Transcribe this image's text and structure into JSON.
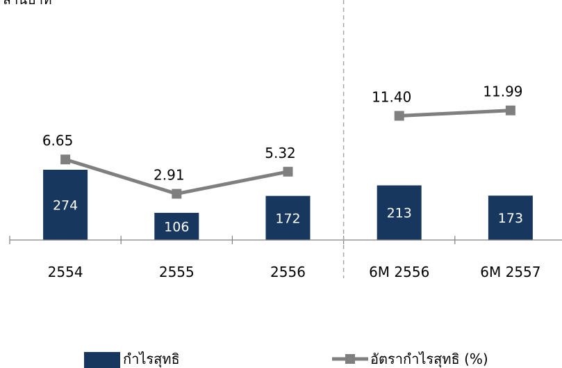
{
  "unit_label": "ล้านบาท",
  "chart_data": {
    "type": "bar+line",
    "categories": [
      "2554",
      "2555",
      "2556",
      "6M 2556",
      "6M 2557"
    ],
    "series": [
      {
        "name": "กำไรสุทธิ",
        "type": "bar",
        "values": [
          274,
          106,
          172,
          213,
          173
        ]
      },
      {
        "name": "อัตรากำไรสุทธิ (%)",
        "type": "line",
        "segments": [
          [
            0,
            1,
            2
          ],
          [
            3,
            4
          ]
        ],
        "values": [
          6.65,
          2.91,
          5.32,
          11.4,
          11.99
        ],
        "labels": [
          "6.65",
          "2.91",
          "5.32",
          "11.40",
          "11.99"
        ]
      }
    ],
    "legend_position": "bottom",
    "colors": {
      "bar": "#17375e",
      "line": "#7f7f7f",
      "axis": "#808080",
      "divider": "#a6a6a6"
    }
  }
}
